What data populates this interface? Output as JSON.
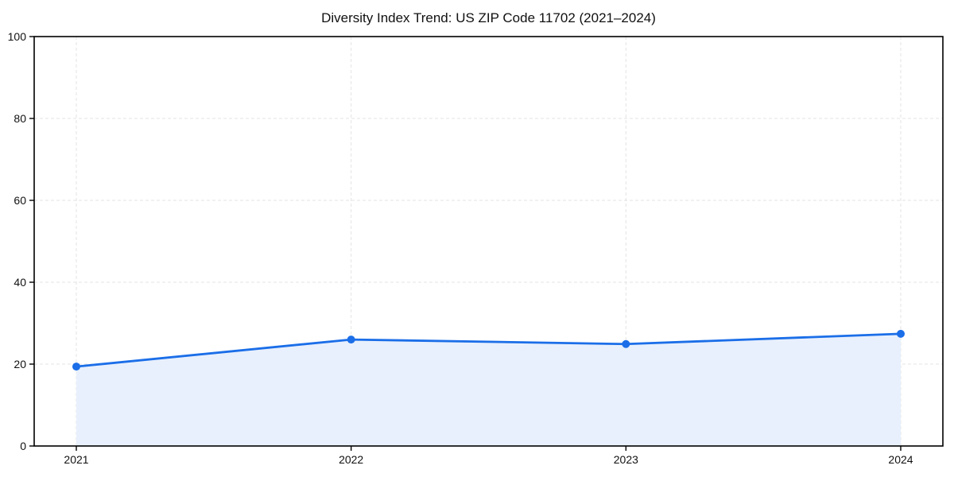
{
  "page": {
    "background_color": "#ffffff"
  },
  "chart_data": {
    "type": "line",
    "title": "Diversity Index Trend: US ZIP Code 11702 (2021–2024)",
    "categories": [
      "2021",
      "2022",
      "2023",
      "2024"
    ],
    "series": [
      {
        "name": "Diversity Index",
        "values": [
          19.4,
          26.0,
          24.9,
          27.4
        ]
      }
    ],
    "xlabel": "",
    "ylabel": "",
    "ylim": [
      0,
      100
    ],
    "yticks": [
      0,
      20,
      40,
      60,
      80,
      100
    ],
    "grid": "dashed, horizontal at y-ticks and vertical at year ticks",
    "legend": "none",
    "area_fill": true,
    "marker": "circle",
    "style": {
      "line_color": "#1b6ee8",
      "marker_color": "#1b6ee8",
      "fill_color": "#e8f0fd",
      "grid_color": "#e3e3e3",
      "axis_color": "#000000",
      "text_color": "#111111"
    }
  }
}
